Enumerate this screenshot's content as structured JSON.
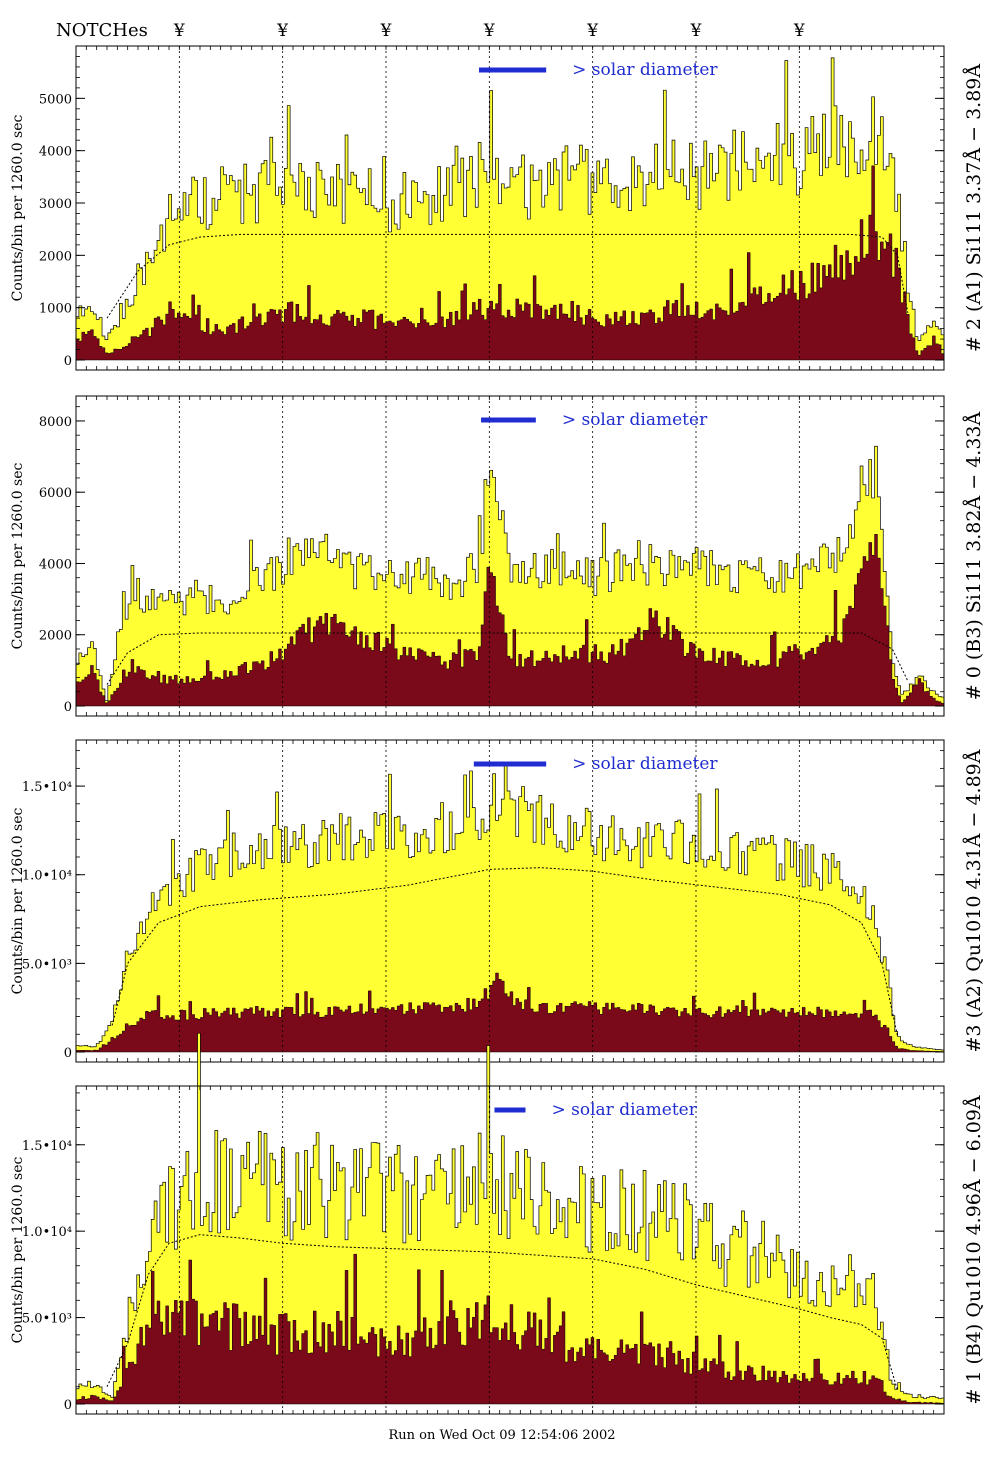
{
  "header": {
    "notches_label": "NOTCHes",
    "notch_symbol": "¥"
  },
  "notch_positions": [
    1.0,
    2.0,
    3.0,
    4.0,
    5.0,
    6.0,
    7.0
  ],
  "footer": {
    "run_text": "Run on Wed Oct 09 12:54:06 2002"
  },
  "colors": {
    "yellow": "#ffff33",
    "maroon": "#7a0a1a",
    "blue": "#1f2ccf",
    "frame": "#000000"
  },
  "chart_data": [
    {
      "type": "area",
      "ylabel": "Counts/bin per   1260.0 sec",
      "side_label": "# 2 (A1) Si111  3.37Å − 3.89Å",
      "legend_text": "> solar diameter",
      "ylim": [
        0,
        6000
      ],
      "yticks": [
        0,
        1000,
        2000,
        3000,
        4000,
        5000
      ],
      "ytick_labels": [
        "0",
        "1000",
        "2000",
        "3000",
        "4000",
        "5000"
      ],
      "x_range": [
        0,
        8.4
      ],
      "legend_bar": [
        3.9,
        4.55
      ],
      "total_envelope": {
        "x": [
          0,
          0.15,
          0.3,
          0.5,
          0.7,
          0.9,
          1.1,
          1.3,
          1.5,
          1.8,
          2.1,
          2.4,
          2.7,
          3.0,
          3.3,
          3.6,
          3.9,
          4.2,
          4.5,
          4.8,
          5.1,
          5.4,
          5.7,
          6.0,
          6.3,
          6.6,
          6.9,
          7.2,
          7.5,
          7.7,
          7.9,
          8.05,
          8.15,
          8.3,
          8.4
        ],
        "y": [
          900,
          1100,
          400,
          1100,
          1800,
          2700,
          3100,
          3000,
          3200,
          3200,
          3300,
          3200,
          3200,
          3000,
          3100,
          3200,
          3500,
          3300,
          3300,
          3500,
          3300,
          3400,
          3600,
          3500,
          3700,
          3800,
          3800,
          4000,
          4200,
          4500,
          3800,
          1500,
          300,
          700,
          500
        ]
      },
      "low_envelope": {
        "x": [
          0,
          0.15,
          0.3,
          0.5,
          0.7,
          0.9,
          1.1,
          1.3,
          1.5,
          1.8,
          2.1,
          2.4,
          2.7,
          3.0,
          3.3,
          3.6,
          3.9,
          4.2,
          4.5,
          4.8,
          5.1,
          5.4,
          5.7,
          6.0,
          6.3,
          6.6,
          6.9,
          7.2,
          7.5,
          7.7,
          7.9,
          8.05,
          8.15,
          8.3,
          8.4
        ],
        "y": [
          400,
          500,
          100,
          300,
          500,
          900,
          700,
          600,
          600,
          700,
          900,
          700,
          800,
          700,
          600,
          700,
          900,
          900,
          900,
          900,
          700,
          800,
          900,
          900,
          1000,
          1100,
          1300,
          1500,
          1900,
          2500,
          2000,
          800,
          50,
          400,
          100
        ]
      },
      "model_curve": {
        "x": [
          0.3,
          0.6,
          0.9,
          1.2,
          1.6,
          2.5,
          4.0,
          6.0,
          7.5,
          7.8,
          7.95,
          8.05
        ],
        "y": [
          800,
          1700,
          2200,
          2350,
          2400,
          2400,
          2400,
          2400,
          2400,
          2350,
          2000,
          900
        ]
      },
      "spike_seeds": [
        11,
        0.55
      ]
    },
    {
      "type": "area",
      "ylabel": "Counts/bin per   1260.0 sec",
      "side_label": "# 0 (B3) Si111  3.82Å − 4.33Å",
      "legend_text": "> solar diameter",
      "ylim": [
        0,
        8700
      ],
      "yticks": [
        0,
        2000,
        4000,
        6000,
        8000
      ],
      "ytick_labels": [
        "0",
        "2000",
        "4000",
        "6000",
        "8000"
      ],
      "x_range": [
        0,
        8.4
      ],
      "legend_bar": [
        3.92,
        4.45
      ],
      "total_envelope": {
        "x": [
          0,
          0.15,
          0.3,
          0.45,
          0.6,
          0.9,
          1.2,
          1.5,
          1.8,
          2.1,
          2.4,
          2.7,
          3.0,
          3.3,
          3.6,
          3.9,
          4.0,
          4.2,
          4.5,
          4.8,
          5.1,
          5.4,
          5.6,
          5.9,
          6.2,
          6.5,
          6.8,
          7.1,
          7.4,
          7.6,
          7.75,
          7.9,
          8.0,
          8.15,
          8.3,
          8.4
        ],
        "y": [
          1200,
          1900,
          100,
          2800,
          3100,
          3000,
          2900,
          3000,
          3500,
          4300,
          4700,
          3800,
          3700,
          3700,
          3500,
          3800,
          7000,
          3700,
          3800,
          3800,
          3600,
          4200,
          3900,
          3900,
          3800,
          3600,
          3600,
          3800,
          4300,
          6000,
          6800,
          1300,
          300,
          900,
          400,
          200
        ]
      },
      "low_envelope": {
        "x": [
          0,
          0.15,
          0.3,
          0.45,
          0.6,
          0.9,
          1.2,
          1.5,
          1.8,
          2.1,
          2.4,
          2.7,
          3.0,
          3.3,
          3.6,
          3.9,
          4.0,
          4.2,
          4.5,
          4.8,
          5.1,
          5.4,
          5.6,
          5.9,
          6.2,
          6.5,
          6.8,
          7.1,
          7.4,
          7.6,
          7.75,
          7.9,
          8.0,
          8.15,
          8.3,
          8.4
        ],
        "y": [
          600,
          1000,
          50,
          800,
          1000,
          700,
          800,
          900,
          1100,
          1700,
          2400,
          2000,
          1700,
          1300,
          1200,
          1400,
          3700,
          1300,
          1300,
          1400,
          1400,
          1600,
          2500,
          1500,
          1300,
          1200,
          1300,
          1500,
          2000,
          3500,
          4500,
          800,
          50,
          700,
          200,
          50
        ]
      },
      "model_curve": {
        "x": [
          0.3,
          0.5,
          0.8,
          1.2,
          2.0,
          4.0,
          6.0,
          7.6,
          7.9,
          8.05
        ],
        "y": [
          600,
          1500,
          2000,
          2050,
          2050,
          2050,
          2050,
          2050,
          1600,
          700
        ]
      },
      "spike_seeds": [
        23,
        0.45
      ]
    },
    {
      "type": "area",
      "ylabel": "Counts/bin per   1260.0 sec",
      "side_label": "#3 (A2) Qu1010  4.31Å − 4.89Å",
      "legend_text": "> solar diameter",
      "ylim": [
        0,
        17600
      ],
      "yticks": [
        0,
        5000,
        10000,
        15000
      ],
      "ytick_labels": [
        "0",
        "5.0•10³",
        "1.0•10⁴",
        "1.5•10⁴"
      ],
      "x_range": [
        0,
        8.4
      ],
      "legend_bar": [
        3.85,
        4.55
      ],
      "total_envelope": {
        "x": [
          0,
          0.2,
          0.35,
          0.5,
          0.7,
          0.9,
          1.2,
          1.5,
          1.8,
          2.1,
          2.4,
          2.7,
          3.0,
          3.3,
          3.6,
          3.9,
          4.1,
          4.3,
          4.6,
          4.9,
          5.2,
          5.5,
          5.8,
          6.1,
          6.4,
          6.7,
          7.0,
          7.3,
          7.5,
          7.7,
          7.85,
          7.95,
          8.1,
          8.4
        ],
        "y": [
          400,
          300,
          1800,
          5500,
          8000,
          9200,
          10500,
          11200,
          11400,
          11500,
          11700,
          11900,
          12200,
          12500,
          12800,
          13400,
          15000,
          13300,
          12700,
          12400,
          12200,
          11800,
          11700,
          11500,
          11400,
          11000,
          10600,
          10200,
          9300,
          8000,
          4500,
          800,
          300,
          100
        ]
      },
      "low_envelope": {
        "x": [
          0,
          0.2,
          0.35,
          0.5,
          0.7,
          0.9,
          1.2,
          1.5,
          1.8,
          2.1,
          2.4,
          2.7,
          3.0,
          3.3,
          3.6,
          3.9,
          4.1,
          4.3,
          4.6,
          4.9,
          5.2,
          5.5,
          5.8,
          6.1,
          6.4,
          6.7,
          7.0,
          7.3,
          7.5,
          7.7,
          7.85,
          7.95,
          8.1,
          8.4
        ],
        "y": [
          100,
          80,
          600,
          1500,
          2000,
          2000,
          2100,
          2100,
          2200,
          2200,
          2200,
          2300,
          2300,
          2400,
          2500,
          2600,
          4000,
          2500,
          2400,
          2400,
          2400,
          2300,
          2200,
          2200,
          2200,
          2200,
          2200,
          2200,
          2300,
          2000,
          1200,
          200,
          80,
          20
        ]
      },
      "model_curve": {
        "x": [
          0.35,
          0.5,
          0.8,
          1.2,
          1.8,
          2.5,
          3.2,
          4.0,
          4.5,
          5.0,
          5.6,
          6.2,
          6.8,
          7.3,
          7.6,
          7.8,
          7.95
        ],
        "y": [
          1500,
          5000,
          7300,
          8200,
          8600,
          8900,
          9400,
          10300,
          10400,
          10200,
          9700,
          9300,
          8900,
          8300,
          7300,
          5000,
          900
        ]
      },
      "spike_seeds": [
        37,
        0.35
      ]
    },
    {
      "type": "area",
      "ylabel": "Counts/bin per   1260.0 sec",
      "side_label": "# 1 (B4) Qu1010 4.96Å − 6.09Å",
      "legend_text": "> solar diameter",
      "ylim": [
        0,
        18400
      ],
      "yticks": [
        0,
        5000,
        10000,
        15000
      ],
      "ytick_labels": [
        "0",
        "5.0•10³",
        "1.0•10⁴",
        "1.5•10⁴"
      ],
      "x_range": [
        0,
        8.4
      ],
      "legend_bar": [
        4.05,
        4.35
      ],
      "total_envelope": {
        "x": [
          0,
          0.2,
          0.35,
          0.5,
          0.7,
          0.9,
          1.1,
          1.3,
          1.6,
          1.9,
          2.2,
          2.5,
          2.8,
          3.1,
          3.4,
          3.7,
          4.0,
          4.3,
          4.6,
          4.9,
          5.2,
          5.5,
          5.8,
          6.1,
          6.4,
          6.7,
          7.0,
          7.3,
          7.6,
          7.75,
          7.9,
          8.05,
          8.4
        ],
        "y": [
          1000,
          1200,
          500,
          4500,
          9000,
          11500,
          13000,
          12500,
          12800,
          12300,
          12500,
          13000,
          12300,
          11800,
          12600,
          13200,
          13000,
          12700,
          11300,
          11000,
          10800,
          10800,
          11000,
          9500,
          9000,
          8200,
          7500,
          7000,
          6800,
          6200,
          1200,
          500,
          300
        ]
      },
      "low_envelope": {
        "x": [
          0,
          0.2,
          0.35,
          0.5,
          0.7,
          0.9,
          1.1,
          1.3,
          1.6,
          1.9,
          2.2,
          2.5,
          2.8,
          3.1,
          3.4,
          3.7,
          4.0,
          4.3,
          4.6,
          4.9,
          5.2,
          5.5,
          5.8,
          6.1,
          6.4,
          6.7,
          7.0,
          7.3,
          7.6,
          7.75,
          7.9,
          8.05,
          8.4
        ],
        "y": [
          300,
          400,
          200,
          2000,
          4500,
          4800,
          4400,
          4200,
          4200,
          3800,
          3900,
          4100,
          3800,
          3400,
          3800,
          4500,
          4500,
          4200,
          3300,
          3100,
          2700,
          2700,
          2600,
          2000,
          1800,
          1600,
          1500,
          1400,
          1500,
          1400,
          300,
          100,
          50
        ]
      },
      "model_curve": {
        "x": [
          0.3,
          0.5,
          0.7,
          0.9,
          1.2,
          1.6,
          2.0,
          2.5,
          3.0,
          3.5,
          4.0,
          4.5,
          5.0,
          5.5,
          6.0,
          6.5,
          7.0,
          7.3,
          7.6,
          7.8,
          7.95
        ],
        "y": [
          1000,
          3500,
          7500,
          9300,
          9800,
          9600,
          9300,
          9100,
          9000,
          8900,
          8800,
          8600,
          8400,
          7800,
          6900,
          6200,
          5500,
          5000,
          4600,
          3800,
          800
        ]
      },
      "spike_seeds": [
        53,
        0.75
      ]
    }
  ]
}
